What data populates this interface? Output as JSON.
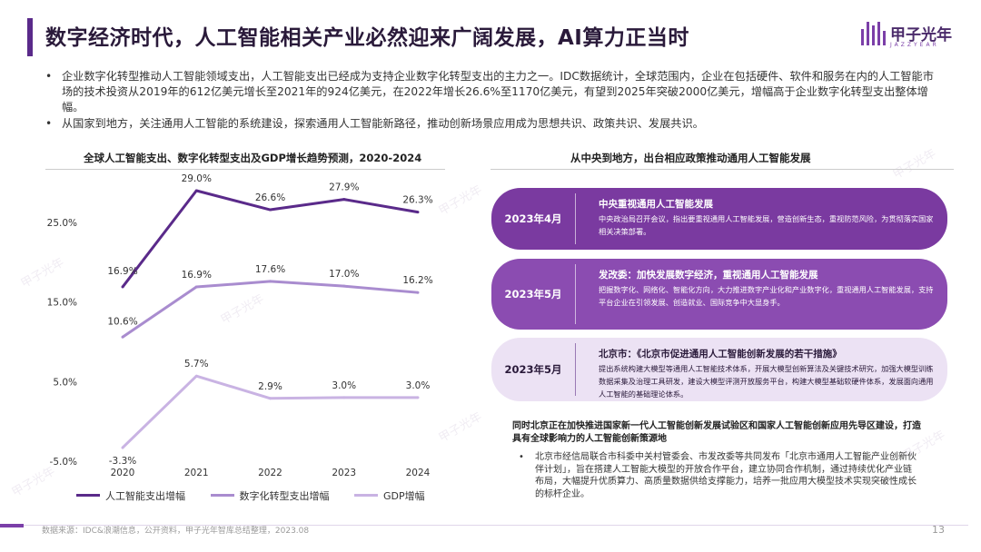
{
  "header": {
    "title": "数字经济时代，人工智能相关产业必然迎来广阔发展，AI算力正当时",
    "logo_name": "甲子光年",
    "logo_sub": "JAZZYEAR"
  },
  "bullets": [
    "企业数字化转型推动人工智能领域支出，人工智能支出已经成为支持企业数字化转型支出的主力之一。IDC数据统计，全球范围内，企业在包括硬件、软件和服务在内的人工智能市场的技术投资从2019年的612亿美元增长至2021年的924亿美元，在2022年增长26.6%至1170亿美元，有望到2025年突破2000亿美元，增幅高于企业数字化转型支出整体增幅。",
    "从国家到地方，关注通用人工智能的系统建设，探索通用人工智能新路径，推动创新场景应用成为思想共识、政策共识、发展共识。"
  ],
  "chart_data": {
    "type": "line",
    "title": "全球人工智能支出、数字化转型支出及GDP增长趋势预测，2020-2024",
    "x": [
      "2020",
      "2021",
      "2022",
      "2023",
      "2024"
    ],
    "y_ticks": [
      "25.0%",
      "15.0%",
      "5.0%",
      "-5.0%"
    ],
    "y_tick_values": [
      25,
      15,
      5,
      -5
    ],
    "ylim": [
      -5,
      29
    ],
    "series": [
      {
        "name": "人工智能支出增幅",
        "color": "#5a2a8a",
        "values": [
          16.9,
          29.0,
          26.6,
          27.9,
          26.3
        ],
        "labels": [
          "16.9%",
          "29.0%",
          "26.6%",
          "27.9%",
          "26.3%"
        ]
      },
      {
        "name": "数字化转型支出增幅",
        "color": "#a98ccf",
        "values": [
          10.6,
          16.9,
          17.6,
          17.0,
          16.2
        ],
        "labels": [
          "10.6%",
          "16.9%",
          "17.6%",
          "17.0%",
          "16.2%"
        ]
      },
      {
        "name": "GDP增幅",
        "color": "#c9b3e3",
        "values": [
          -3.3,
          5.7,
          2.9,
          3.0,
          3.0
        ],
        "labels": [
          "-3.3%",
          "5.7%",
          "2.9%",
          "3.0%",
          "3.0%"
        ]
      }
    ]
  },
  "policy": {
    "title": "从中央到地方，出台相应政策推动通用人工智能发展",
    "items": [
      {
        "date": "2023年4月",
        "title": "中央重视通用人工智能发展",
        "body": "中央政治局召开会议，指出要重视通用人工智能发展，营造创新生态，重视防范风险，为贯彻落实国家相关决策部署。"
      },
      {
        "date": "2023年5月",
        "title": "发改委：加快发展数字经济，重视通用人工智能发展",
        "body": "把握数字化、网络化、智能化方向，大力推进数字产业化和产业数字化，重视通用人工智能发展，支持平台企业在引领发展、创造就业、国际竞争中大显身手。"
      },
      {
        "date": "2023年5月",
        "title": "北京市：《北京市促进通用人工智能创新发展的若干措施》",
        "body": "提出系统构建大模型等通用人工智能技术体系，开展大模型创新算法及关键技术研究，加强大模型训练数据采集及治理工具研发，建设大模型评测开放服务平台，构建大模型基础软硬件体系，发展面向通用人工智能的基础理论体系。"
      }
    ],
    "note": "同时北京正在加快推进国家新一代人工智能创新发展试验区和国家人工智能创新应用先导区建设，打造具有全球影响力的人工智能创新策源地",
    "note_bullet": "北京市经信局联合市科委中关村管委会、市发改委等共同发布「北京市通用人工智能产业创新伙伴计划」，旨在搭建人工智能大模型的开放合作平台，建立协同合作机制，通过持续优化产业链布局，大幅提升优质算力、高质量数据供给支撑能力，培养一批应用大模型技术实现突破性成长的标杆企业。"
  },
  "footer": {
    "source": "数据来源：IDC&浪潮信息，公开资料，甲子光年智库总结整理，2023.08",
    "page": "13"
  },
  "watermark": "甲子光年"
}
